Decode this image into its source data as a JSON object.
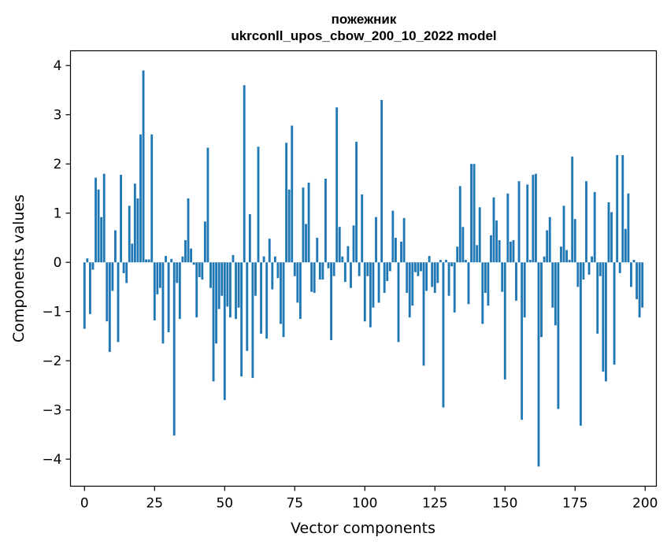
{
  "chart_data": {
    "type": "bar",
    "title": [
      "пожежник",
      "ukrconll_upos_cbow_200_10_2022 model"
    ],
    "xlabel": "Vector components",
    "ylabel": "Components values",
    "xlim": [
      -5,
      204
    ],
    "ylim": [
      -4.55,
      4.3
    ],
    "xticks": [
      0,
      25,
      50,
      75,
      100,
      125,
      150,
      175,
      200
    ],
    "yticks": [
      -4,
      -3,
      -2,
      -1,
      0,
      1,
      2,
      3,
      4
    ],
    "ytick_labels": [
      "−4",
      "−3",
      "−2",
      "−1",
      "0",
      "1",
      "2",
      "3",
      "4"
    ],
    "bar_color": "#1f77b4",
    "values": [
      -1.35,
      0.08,
      -1.05,
      -0.15,
      1.72,
      1.48,
      0.92,
      1.8,
      -1.2,
      -1.82,
      -0.58,
      0.65,
      -1.62,
      1.78,
      -0.22,
      -0.42,
      1.15,
      0.38,
      1.6,
      1.3,
      2.6,
      3.9,
      0.06,
      0.06,
      2.6,
      -1.18,
      -0.65,
      -0.52,
      -1.65,
      0.13,
      -1.42,
      0.07,
      -3.52,
      -0.42,
      -1.15,
      0.12,
      0.45,
      1.3,
      0.28,
      -0.05,
      -1.12,
      -0.3,
      -0.35,
      0.83,
      2.33,
      -0.52,
      -2.42,
      -1.65,
      -0.95,
      -0.68,
      -2.8,
      -0.9,
      -1.12,
      0.15,
      -1.15,
      -0.92,
      -2.32,
      3.6,
      -1.8,
      0.98,
      -2.35,
      -0.68,
      2.35,
      -1.45,
      0.12,
      -1.55,
      0.48,
      -0.55,
      0.12,
      -0.32,
      -1.25,
      -1.52,
      2.43,
      1.48,
      2.78,
      -0.28,
      -0.82,
      -1.15,
      1.52,
      0.78,
      1.62,
      -0.6,
      -0.62,
      0.5,
      -0.35,
      -0.35,
      1.7,
      -0.12,
      -1.58,
      -0.28,
      3.15,
      0.72,
      0.12,
      -0.4,
      0.33,
      -0.52,
      0.75,
      2.45,
      -0.28,
      1.38,
      -1.2,
      -0.28,
      -1.32,
      -0.92,
      0.92,
      -0.82,
      3.3,
      -0.62,
      -0.38,
      -0.18,
      1.05,
      0.5,
      -1.62,
      0.42,
      0.9,
      -0.62,
      -1.12,
      -0.88,
      -0.2,
      -0.28,
      -0.18,
      -2.1,
      -0.58,
      0.13,
      -0.5,
      -0.62,
      -0.42,
      0.05,
      -2.95,
      0.05,
      -0.68,
      -0.08,
      -1.02,
      0.32,
      1.55,
      0.72,
      0.05,
      -0.85,
      2.0,
      2.0,
      0.35,
      1.12,
      -1.25,
      -0.62,
      -0.88,
      0.55,
      1.32,
      0.85,
      0.45,
      -0.6,
      -2.38,
      1.4,
      0.42,
      0.45,
      -0.78,
      1.65,
      -3.2,
      -1.12,
      1.58,
      0.05,
      1.78,
      1.8,
      -4.15,
      -1.52,
      0.12,
      0.65,
      0.92,
      -0.92,
      -1.28,
      -2.98,
      0.32,
      1.15,
      0.25,
      0.05,
      2.15,
      0.88,
      -0.5,
      -3.32,
      -0.35,
      1.65,
      -0.25,
      0.12,
      1.43,
      -1.45,
      -0.28,
      -2.22,
      -2.42,
      1.22,
      1.02,
      -2.08,
      2.18,
      -0.22,
      2.18,
      0.68,
      1.4,
      -0.5,
      0.05,
      -0.75,
      -1.12,
      -0.92
    ]
  }
}
